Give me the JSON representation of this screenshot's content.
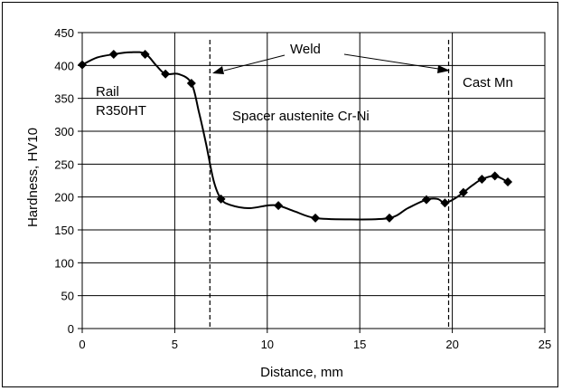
{
  "chart_data": {
    "type": "scatter",
    "xlabel": "Distance, mm",
    "ylabel": "Hardness, HV10",
    "xlim": [
      0,
      25
    ],
    "ylim": [
      0,
      450
    ],
    "x_ticks": [
      0,
      5,
      10,
      15,
      20,
      25
    ],
    "y_ticks": [
      0,
      50,
      100,
      150,
      200,
      250,
      300,
      350,
      400,
      450
    ],
    "grid": true,
    "series": [
      {
        "marker": "diamond",
        "color": "#000000",
        "points": [
          {
            "x": 0.0,
            "y": 401
          },
          {
            "x": 1.7,
            "y": 417
          },
          {
            "x": 3.4,
            "y": 417
          },
          {
            "x": 4.5,
            "y": 387
          },
          {
            "x": 5.9,
            "y": 373
          },
          {
            "x": 7.5,
            "y": 197
          },
          {
            "x": 10.6,
            "y": 187
          },
          {
            "x": 12.6,
            "y": 168
          },
          {
            "x": 16.6,
            "y": 168
          },
          {
            "x": 18.6,
            "y": 196
          },
          {
            "x": 19.6,
            "y": 191
          },
          {
            "x": 20.6,
            "y": 207
          },
          {
            "x": 21.6,
            "y": 227
          },
          {
            "x": 22.3,
            "y": 232
          },
          {
            "x": 23.0,
            "y": 223
          }
        ]
      }
    ],
    "fit_curve": [
      [
        0.0,
        401
      ],
      [
        0.8,
        412
      ],
      [
        1.7,
        417
      ],
      [
        2.6,
        420
      ],
      [
        3.4,
        418
      ],
      [
        4.0,
        400
      ],
      [
        4.5,
        387
      ],
      [
        5.2,
        387
      ],
      [
        5.9,
        373
      ],
      [
        6.3,
        330
      ],
      [
        6.7,
        280
      ],
      [
        7.1,
        225
      ],
      [
        7.5,
        197
      ],
      [
        8.0,
        188
      ],
      [
        9.0,
        183
      ],
      [
        10.0,
        187
      ],
      [
        10.6,
        187
      ],
      [
        11.5,
        178
      ],
      [
        12.6,
        168
      ],
      [
        14.5,
        166
      ],
      [
        16.6,
        168
      ],
      [
        17.6,
        183
      ],
      [
        18.6,
        196
      ],
      [
        19.2,
        197
      ],
      [
        19.6,
        191
      ],
      [
        20.1,
        197
      ],
      [
        20.6,
        207
      ],
      [
        21.1,
        218
      ],
      [
        21.6,
        227
      ],
      [
        22.3,
        232
      ],
      [
        23.0,
        223
      ]
    ],
    "weld_lines_x": [
      6.9,
      19.8
    ],
    "annotations": {
      "weld": "Weld",
      "rail_line1": "Rail",
      "rail_line2": "R350HT",
      "spacer": "Spacer austenite Cr-Ni",
      "cast": "Cast Mn"
    }
  }
}
